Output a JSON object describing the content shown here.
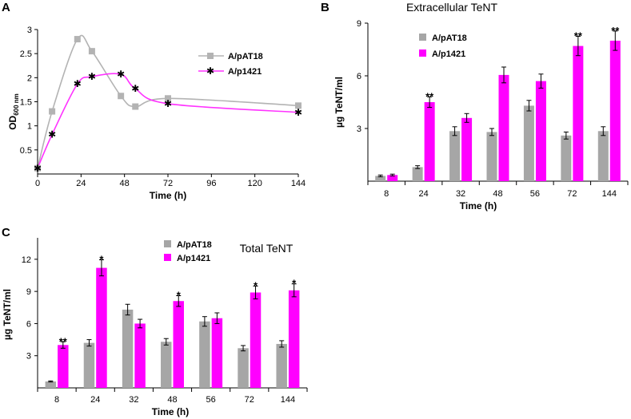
{
  "chart_data": [
    {
      "panel": "A",
      "type": "line",
      "title": "",
      "xlabel": "Time  (h)",
      "ylabel": "OD",
      "ylabel_sub": "600 nm",
      "xlim": [
        0,
        144
      ],
      "ylim": [
        0,
        3
      ],
      "xticks": [
        "0",
        "24",
        "48",
        "72",
        "96",
        "120",
        "144"
      ],
      "yticks": [
        "0.5",
        "1",
        "1.5",
        "2",
        "2.5",
        "3"
      ],
      "legend_position": "top-right",
      "series": [
        {
          "name": "A/pAT18",
          "color": "#b3b3b3",
          "marker": "square",
          "x": [
            0,
            8,
            22,
            30,
            46,
            54,
            72,
            144
          ],
          "y": [
            0.12,
            1.3,
            2.8,
            2.55,
            1.62,
            1.4,
            1.57,
            1.42
          ]
        },
        {
          "name": "A/p1421",
          "color": "#ff33ff",
          "marker": "star",
          "x": [
            0,
            8,
            22,
            30,
            46,
            54,
            72,
            144
          ],
          "y": [
            0.12,
            0.82,
            1.87,
            2.02,
            2.07,
            1.77,
            1.46,
            1.28
          ]
        }
      ]
    },
    {
      "panel": "B",
      "type": "bar",
      "title": "Extracellular  TeNT",
      "xlabel": "Time  (h)",
      "ylabel": "µg  TeNT/ml",
      "ylim": [
        0,
        9
      ],
      "yticks": [
        "3",
        "6",
        "9"
      ],
      "categories": [
        "8",
        "24",
        "32",
        "48",
        "56",
        "72",
        "144"
      ],
      "legend_position": "top-left",
      "series": [
        {
          "name": "A/pAT18",
          "color": "#a6a6a6",
          "values": [
            0.3,
            0.8,
            2.85,
            2.8,
            4.3,
            2.6,
            2.85
          ],
          "errors": [
            0.05,
            0.08,
            0.25,
            0.2,
            0.3,
            0.2,
            0.25
          ]
        },
        {
          "name": "A/p1421",
          "color": "#ff00ff",
          "values": [
            0.35,
            4.5,
            3.6,
            6.05,
            5.7,
            7.7,
            8.0
          ],
          "errors": [
            0.05,
            0.3,
            0.25,
            0.45,
            0.4,
            0.55,
            0.55
          ]
        }
      ],
      "annotations": [
        "",
        "**",
        "",
        "",
        "",
        "**",
        "**"
      ]
    },
    {
      "panel": "C",
      "type": "bar",
      "title": "Total  TeNT",
      "xlabel": "Time  (h)",
      "ylabel": "µg  TeNT/ml",
      "ylim": [
        0,
        14
      ],
      "yticks": [
        "3",
        "6",
        "9",
        "12"
      ],
      "categories": [
        "8",
        "24",
        "32",
        "48",
        "56",
        "72",
        "144"
      ],
      "legend_position": "top-center",
      "series": [
        {
          "name": "A/pAT18",
          "color": "#a6a6a6",
          "values": [
            0.6,
            4.2,
            7.3,
            4.3,
            6.2,
            3.7,
            4.1
          ],
          "errors": [
            0.05,
            0.3,
            0.5,
            0.3,
            0.45,
            0.25,
            0.3
          ]
        },
        {
          "name": "A/p1421",
          "color": "#ff00ff",
          "values": [
            4.0,
            11.2,
            6.0,
            8.1,
            6.5,
            8.9,
            9.1
          ],
          "errors": [
            0.3,
            0.75,
            0.4,
            0.5,
            0.5,
            0.6,
            0.6
          ]
        }
      ],
      "annotations": [
        "**",
        "*",
        "",
        "*",
        "",
        "*",
        "*"
      ]
    }
  ]
}
